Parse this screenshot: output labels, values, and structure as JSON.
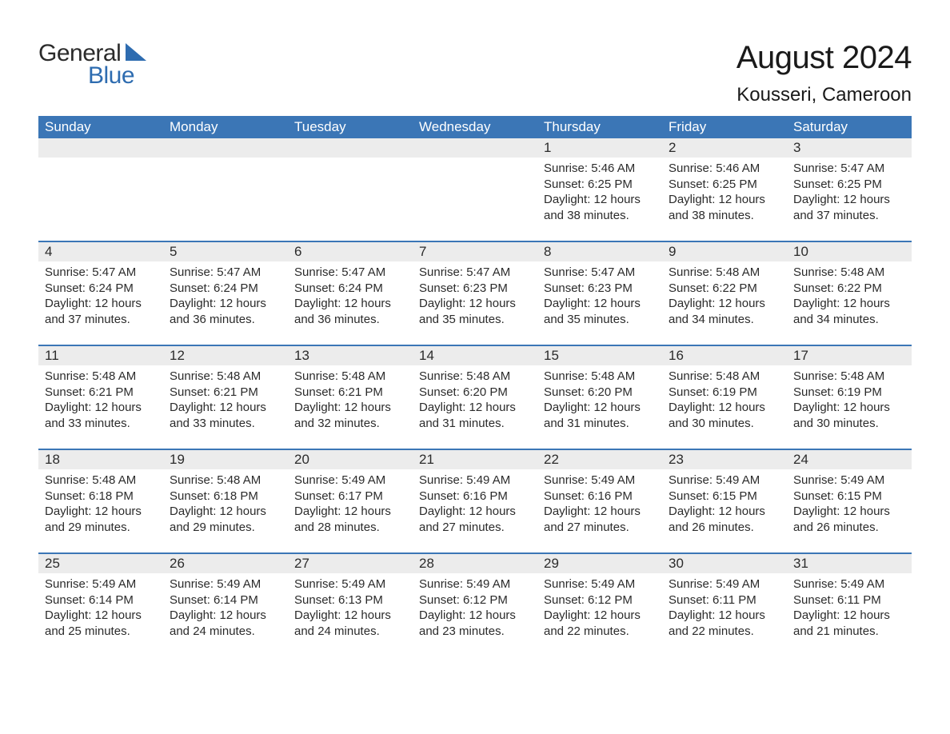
{
  "logo": {
    "general": "General",
    "blue": "Blue",
    "general_color": "#2b2b2b",
    "blue_color": "#2e6cb0",
    "triangle_color": "#2e6cb0"
  },
  "header": {
    "month_title": "August 2024",
    "location": "Kousseri, Cameroon"
  },
  "colors": {
    "header_bg": "#3b76b6",
    "header_text": "#ffffff",
    "daynum_bg": "#ececec",
    "text": "#2b2b2b",
    "row_border": "#3b76b6",
    "background": "#ffffff"
  },
  "typography": {
    "title_fontsize": 40,
    "location_fontsize": 24,
    "dayheader_fontsize": 17,
    "daynum_fontsize": 17,
    "body_fontsize": 15
  },
  "layout": {
    "columns": 7,
    "rows": 5,
    "start_day_index": 4
  },
  "day_headers": [
    "Sunday",
    "Monday",
    "Tuesday",
    "Wednesday",
    "Thursday",
    "Friday",
    "Saturday"
  ],
  "days": [
    {
      "n": "1",
      "sunrise": "5:46 AM",
      "sunset": "6:25 PM",
      "daylight": "12 hours and 38 minutes."
    },
    {
      "n": "2",
      "sunrise": "5:46 AM",
      "sunset": "6:25 PM",
      "daylight": "12 hours and 38 minutes."
    },
    {
      "n": "3",
      "sunrise": "5:47 AM",
      "sunset": "6:25 PM",
      "daylight": "12 hours and 37 minutes."
    },
    {
      "n": "4",
      "sunrise": "5:47 AM",
      "sunset": "6:24 PM",
      "daylight": "12 hours and 37 minutes."
    },
    {
      "n": "5",
      "sunrise": "5:47 AM",
      "sunset": "6:24 PM",
      "daylight": "12 hours and 36 minutes."
    },
    {
      "n": "6",
      "sunrise": "5:47 AM",
      "sunset": "6:24 PM",
      "daylight": "12 hours and 36 minutes."
    },
    {
      "n": "7",
      "sunrise": "5:47 AM",
      "sunset": "6:23 PM",
      "daylight": "12 hours and 35 minutes."
    },
    {
      "n": "8",
      "sunrise": "5:47 AM",
      "sunset": "6:23 PM",
      "daylight": "12 hours and 35 minutes."
    },
    {
      "n": "9",
      "sunrise": "5:48 AM",
      "sunset": "6:22 PM",
      "daylight": "12 hours and 34 minutes."
    },
    {
      "n": "10",
      "sunrise": "5:48 AM",
      "sunset": "6:22 PM",
      "daylight": "12 hours and 34 minutes."
    },
    {
      "n": "11",
      "sunrise": "5:48 AM",
      "sunset": "6:21 PM",
      "daylight": "12 hours and 33 minutes."
    },
    {
      "n": "12",
      "sunrise": "5:48 AM",
      "sunset": "6:21 PM",
      "daylight": "12 hours and 33 minutes."
    },
    {
      "n": "13",
      "sunrise": "5:48 AM",
      "sunset": "6:21 PM",
      "daylight": "12 hours and 32 minutes."
    },
    {
      "n": "14",
      "sunrise": "5:48 AM",
      "sunset": "6:20 PM",
      "daylight": "12 hours and 31 minutes."
    },
    {
      "n": "15",
      "sunrise": "5:48 AM",
      "sunset": "6:20 PM",
      "daylight": "12 hours and 31 minutes."
    },
    {
      "n": "16",
      "sunrise": "5:48 AM",
      "sunset": "6:19 PM",
      "daylight": "12 hours and 30 minutes."
    },
    {
      "n": "17",
      "sunrise": "5:48 AM",
      "sunset": "6:19 PM",
      "daylight": "12 hours and 30 minutes."
    },
    {
      "n": "18",
      "sunrise": "5:48 AM",
      "sunset": "6:18 PM",
      "daylight": "12 hours and 29 minutes."
    },
    {
      "n": "19",
      "sunrise": "5:48 AM",
      "sunset": "6:18 PM",
      "daylight": "12 hours and 29 minutes."
    },
    {
      "n": "20",
      "sunrise": "5:49 AM",
      "sunset": "6:17 PM",
      "daylight": "12 hours and 28 minutes."
    },
    {
      "n": "21",
      "sunrise": "5:49 AM",
      "sunset": "6:16 PM",
      "daylight": "12 hours and 27 minutes."
    },
    {
      "n": "22",
      "sunrise": "5:49 AM",
      "sunset": "6:16 PM",
      "daylight": "12 hours and 27 minutes."
    },
    {
      "n": "23",
      "sunrise": "5:49 AM",
      "sunset": "6:15 PM",
      "daylight": "12 hours and 26 minutes."
    },
    {
      "n": "24",
      "sunrise": "5:49 AM",
      "sunset": "6:15 PM",
      "daylight": "12 hours and 26 minutes."
    },
    {
      "n": "25",
      "sunrise": "5:49 AM",
      "sunset": "6:14 PM",
      "daylight": "12 hours and 25 minutes."
    },
    {
      "n": "26",
      "sunrise": "5:49 AM",
      "sunset": "6:14 PM",
      "daylight": "12 hours and 24 minutes."
    },
    {
      "n": "27",
      "sunrise": "5:49 AM",
      "sunset": "6:13 PM",
      "daylight": "12 hours and 24 minutes."
    },
    {
      "n": "28",
      "sunrise": "5:49 AM",
      "sunset": "6:12 PM",
      "daylight": "12 hours and 23 minutes."
    },
    {
      "n": "29",
      "sunrise": "5:49 AM",
      "sunset": "6:12 PM",
      "daylight": "12 hours and 22 minutes."
    },
    {
      "n": "30",
      "sunrise": "5:49 AM",
      "sunset": "6:11 PM",
      "daylight": "12 hours and 22 minutes."
    },
    {
      "n": "31",
      "sunrise": "5:49 AM",
      "sunset": "6:11 PM",
      "daylight": "12 hours and 21 minutes."
    }
  ],
  "labels": {
    "sunrise_prefix": "Sunrise: ",
    "sunset_prefix": "Sunset: ",
    "daylight_prefix": "Daylight: "
  }
}
